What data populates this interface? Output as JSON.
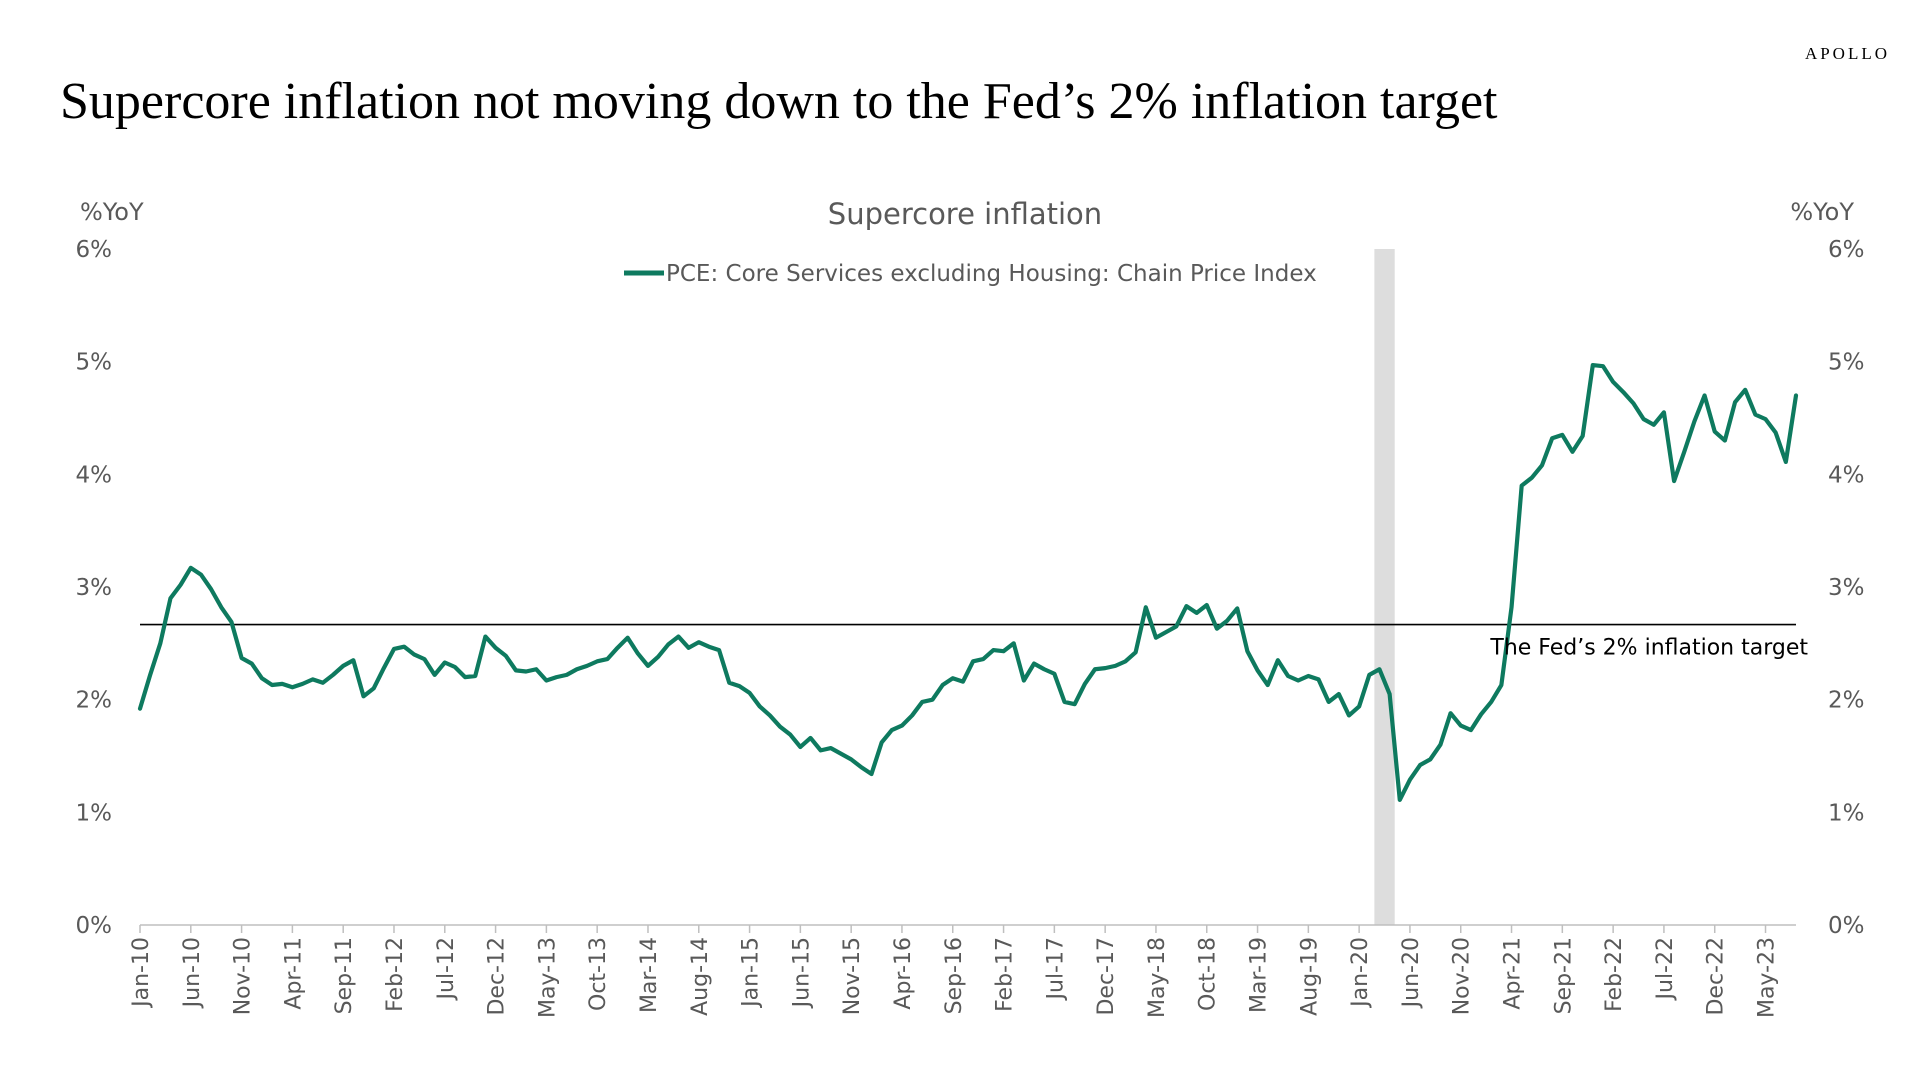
{
  "brand": "APOLLO",
  "page_title": "Supercore inflation not moving down to the Fed’s 2% inflation target",
  "chart_data": {
    "type": "line",
    "title": "Supercore inflation",
    "ylabel_left": "%YoY",
    "ylabel_right": "%YoY",
    "ylim": [
      0,
      6
    ],
    "yticks": [
      "0%",
      "1%",
      "2%",
      "3%",
      "4%",
      "5%",
      "6%"
    ],
    "xticks": [
      "Jan-10",
      "Jun-10",
      "Nov-10",
      "Apr-11",
      "Sep-11",
      "Feb-12",
      "Jul-12",
      "Dec-12",
      "May-13",
      "Oct-13",
      "Mar-14",
      "Aug-14",
      "Jan-15",
      "Jun-15",
      "Nov-15",
      "Apr-16",
      "Sep-16",
      "Feb-17",
      "Jul-17",
      "Dec-17",
      "May-18",
      "Oct-18",
      "Mar-19",
      "Aug-19",
      "Jan-20",
      "Jun-20",
      "Nov-20",
      "Apr-21",
      "Sep-21",
      "Feb-22",
      "Jul-22",
      "Dec-22",
      "May-23"
    ],
    "x_start": "Jan-10",
    "x_end": "Jul-23",
    "legend_position": "top-center",
    "series": [
      {
        "name": "PCE: Core Services excluding Housing: Chain Price Index",
        "color": "#0e7a5f",
        "values": [
          1.92,
          2.22,
          2.5,
          2.9,
          3.02,
          3.17,
          3.11,
          2.98,
          2.82,
          2.69,
          2.37,
          2.32,
          2.19,
          2.13,
          2.14,
          2.11,
          2.14,
          2.18,
          2.15,
          2.22,
          2.3,
          2.35,
          2.03,
          2.1,
          2.28,
          2.45,
          2.47,
          2.4,
          2.36,
          2.22,
          2.33,
          2.29,
          2.2,
          2.21,
          2.56,
          2.46,
          2.39,
          2.26,
          2.25,
          2.27,
          2.17,
          2.2,
          2.22,
          2.27,
          2.3,
          2.34,
          2.36,
          2.46,
          2.55,
          2.41,
          2.3,
          2.38,
          2.49,
          2.56,
          2.46,
          2.51,
          2.47,
          2.44,
          2.15,
          2.12,
          2.06,
          1.94,
          1.86,
          1.76,
          1.69,
          1.58,
          1.66,
          1.55,
          1.57,
          1.52,
          1.47,
          1.4,
          1.34,
          1.62,
          1.73,
          1.77,
          1.86,
          1.98,
          2.0,
          2.13,
          2.19,
          2.16,
          2.34,
          2.36,
          2.44,
          2.43,
          2.5,
          2.17,
          2.32,
          2.27,
          2.23,
          1.98,
          1.96,
          2.14,
          2.27,
          2.28,
          2.3,
          2.34,
          2.42,
          2.82,
          2.55,
          2.6,
          2.65,
          2.83,
          2.77,
          2.84,
          2.63,
          2.7,
          2.81,
          2.43,
          2.26,
          2.13,
          2.35,
          2.21,
          2.17,
          2.21,
          2.18,
          1.98,
          2.05,
          1.86,
          1.94,
          2.22,
          2.27,
          2.05,
          1.11,
          1.29,
          1.42,
          1.47,
          1.6,
          1.88,
          1.77,
          1.73,
          1.87,
          1.98,
          2.13,
          2.82,
          3.9,
          3.97,
          4.08,
          4.32,
          4.35,
          4.2,
          4.34,
          4.97,
          4.96,
          4.82,
          4.73,
          4.63,
          4.49,
          4.44,
          4.55,
          3.94,
          4.2,
          4.47,
          4.7,
          4.38,
          4.3,
          4.64,
          4.75,
          4.53,
          4.49,
          4.37,
          4.11,
          4.7
        ]
      }
    ],
    "annotations": [
      {
        "text": "The Fed’s 2% inflation target",
        "type": "reference-line"
      }
    ],
    "shaded_period": {
      "start": "Mar-20",
      "end": "Apr-20",
      "color": "#dddddd"
    }
  }
}
